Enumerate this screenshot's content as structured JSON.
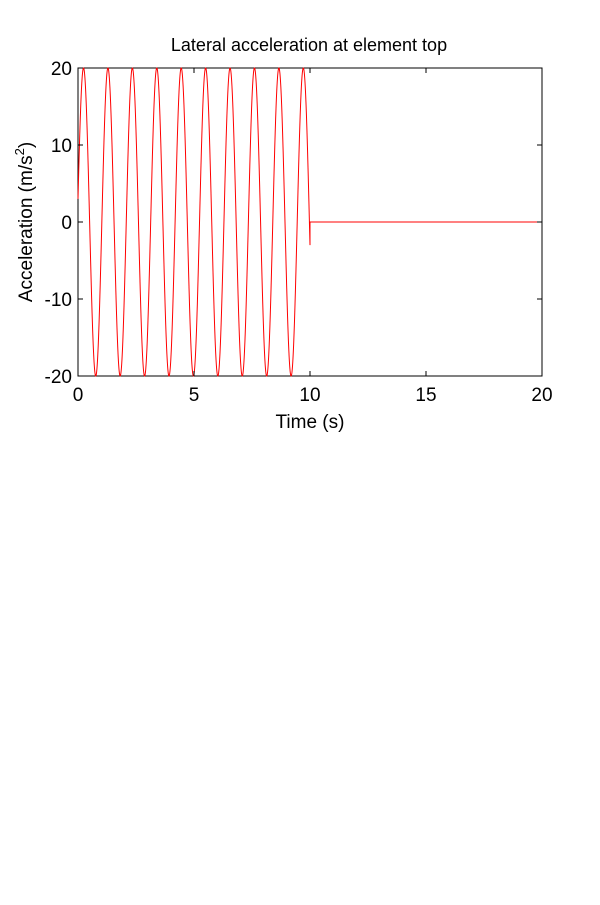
{
  "chart_data": {
    "type": "line",
    "title": "Lateral acceleration at element top",
    "xlabel": "Time (s)",
    "ylabel_main": "Acceleration (m/s",
    "ylabel_sup": "2",
    "ylabel_tail": ")",
    "xlim": [
      0,
      20
    ],
    "ylim": [
      -20,
      20
    ],
    "xticks": [
      0,
      5,
      10,
      15,
      20
    ],
    "yticks": [
      -20,
      -10,
      0,
      10,
      20
    ],
    "grid": false,
    "line_color": "#ff0000",
    "series": [
      {
        "signal": "sine",
        "amplitude": 20,
        "frequency_hz": 0.95,
        "initial_value": 3,
        "x_start": 0,
        "x_end": 10,
        "after_value": 0,
        "after_end": 20
      }
    ]
  }
}
